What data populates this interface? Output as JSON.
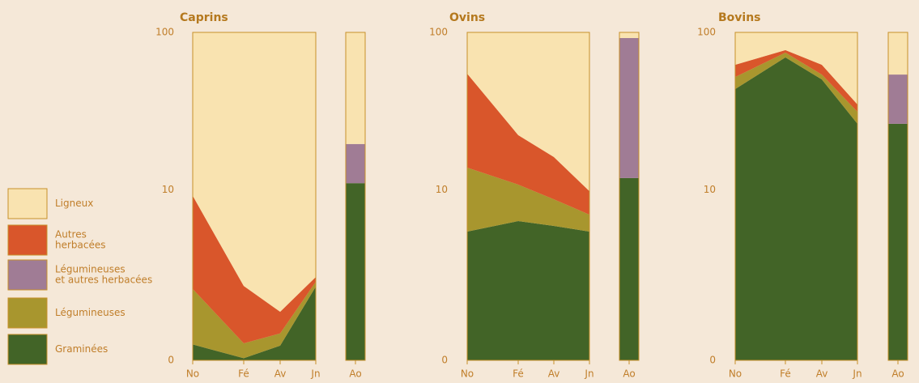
{
  "chart_data": [
    {
      "type": "stacked-area-bar",
      "title": "Caprins",
      "categories": [
        "No",
        "Fé",
        "Av",
        "Jn",
        "Ao"
      ],
      "yscale": "symlog",
      "ylim": [
        0,
        100
      ],
      "yticks": [
        0,
        10,
        100
      ],
      "series": [
        {
          "name": "Graminées",
          "color": "#426427",
          "values": [
            0.25,
            0.03,
            0.23,
            1.82,
            11.1
          ]
        },
        {
          "name": "Légumineuses",
          "color": "#a8962e",
          "values": [
            1.48,
            0.24,
            0.23,
            0.2,
            null
          ]
        },
        {
          "name": "Légumineuses\net autres herbacées",
          "color": "#a07c95",
          "values": [
            null,
            null,
            null,
            null,
            8.9
          ]
        },
        {
          "name": "Autres\nherbacées",
          "color": "#d9562b",
          "values": [
            7.4,
            1.58,
            0.52,
            0.21,
            null
          ]
        },
        {
          "name": "Ligneux",
          "color": "#f9e3b0",
          "values": [
            90.65,
            98.15,
            99.02,
            97.77,
            80
          ]
        }
      ]
    },
    {
      "type": "stacked-area-bar",
      "title": "Ovins",
      "categories": [
        "No",
        "Fé",
        "Av",
        "Jn",
        "Ao"
      ],
      "yscale": "symlog",
      "ylim": [
        0,
        100
      ],
      "yticks": [
        0,
        10,
        100
      ],
      "series": [
        {
          "name": "Graminées",
          "color": "#426427",
          "values": [
            5.12,
            6.1,
            5.63,
            5.12,
            12
          ]
        },
        {
          "name": "Légumineuses",
          "color": "#a8962e",
          "values": [
            8.94,
            4.76,
            3.02,
            1.65,
            null
          ]
        },
        {
          "name": "Légumineuses\net autres herbacées",
          "color": "#a07c95",
          "values": [
            null,
            null,
            null,
            null,
            80.3
          ]
        },
        {
          "name": "Autres\nherbacées",
          "color": "#d9562b",
          "values": [
            41.44,
            11.94,
            7.85,
            3.03,
            null
          ]
        },
        {
          "name": "Ligneux",
          "color": "#f9e3b0",
          "values": [
            44.5,
            77.2,
            83.5,
            90.2,
            7.7
          ]
        }
      ]
    },
    {
      "type": "stacked-area-bar",
      "title": "Bovins",
      "categories": [
        "No",
        "Fé",
        "Av",
        "Jn",
        "Ao"
      ],
      "yscale": "symlog",
      "ylim": [
        0,
        100
      ],
      "yticks": [
        0,
        10,
        100
      ],
      "series": [
        {
          "name": "Graminées",
          "color": "#426427",
          "values": [
            44.5,
            70,
            51.1,
            26.9,
            26.9
          ]
        },
        {
          "name": "Légumineuses",
          "color": "#a8962e",
          "values": [
            8.4,
            5,
            3.7,
            5.1,
            null
          ]
        },
        {
          "name": "Légumineuses\net autres herbacées",
          "color": "#a07c95",
          "values": [
            null,
            null,
            null,
            null,
            27.9
          ]
        },
        {
          "name": "Autres\nherbacées",
          "color": "#d9562b",
          "values": [
            10.1,
            2.7,
            8.2,
            3.6,
            null
          ]
        },
        {
          "name": "Ligneux",
          "color": "#f9e3b0",
          "values": [
            37,
            22.3,
            37,
            64.4,
            45.2
          ]
        }
      ]
    }
  ]
}
